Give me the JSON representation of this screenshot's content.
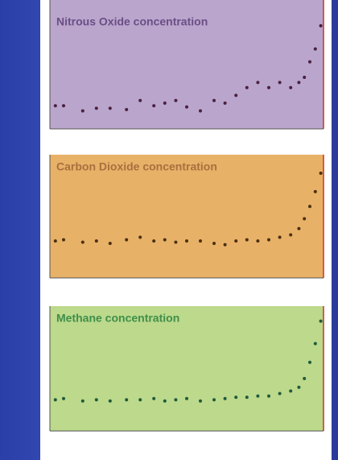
{
  "chart_data": [
    {
      "type": "scatter",
      "title": "Nitrous Oxide concentration",
      "color": "#4a2040",
      "x": [
        2,
        5,
        12,
        17,
        22,
        28,
        33,
        38,
        42,
        46,
        50,
        55,
        60,
        64,
        68,
        72,
        76,
        80,
        84,
        88,
        91,
        93,
        95,
        97,
        99
      ],
      "values": [
        18,
        18,
        14,
        16,
        16,
        15,
        22,
        18,
        20,
        22,
        17,
        14,
        22,
        20,
        26,
        32,
        36,
        32,
        36,
        32,
        36,
        40,
        52,
        62,
        80
      ],
      "xlim": [
        0,
        100
      ],
      "ylim": [
        0,
        100
      ]
    },
    {
      "type": "scatter",
      "title": "Carbon Dioxide concentration",
      "color": "#4a3010",
      "x": [
        2,
        5,
        12,
        17,
        22,
        28,
        33,
        38,
        42,
        46,
        50,
        55,
        60,
        64,
        68,
        72,
        76,
        80,
        84,
        88,
        91,
        93,
        95,
        97,
        99
      ],
      "values": [
        30,
        31,
        29,
        30,
        28,
        31,
        33,
        30,
        31,
        29,
        30,
        30,
        28,
        27,
        30,
        31,
        30,
        31,
        33,
        35,
        40,
        48,
        58,
        70,
        85
      ],
      "xlim": [
        0,
        100
      ],
      "ylim": [
        0,
        100
      ]
    },
    {
      "type": "scatter",
      "title": "Methane concentration",
      "color": "#1f5a3a",
      "x": [
        2,
        5,
        12,
        17,
        22,
        28,
        33,
        38,
        42,
        46,
        50,
        55,
        60,
        64,
        68,
        72,
        76,
        80,
        84,
        88,
        91,
        93,
        95,
        97,
        99
      ],
      "values": [
        25,
        26,
        24,
        25,
        24,
        25,
        25,
        26,
        24,
        25,
        26,
        24,
        25,
        26,
        27,
        27,
        28,
        28,
        30,
        32,
        35,
        42,
        55,
        70,
        88
      ],
      "xlim": [
        0,
        100
      ],
      "ylim": [
        0,
        100
      ]
    }
  ]
}
